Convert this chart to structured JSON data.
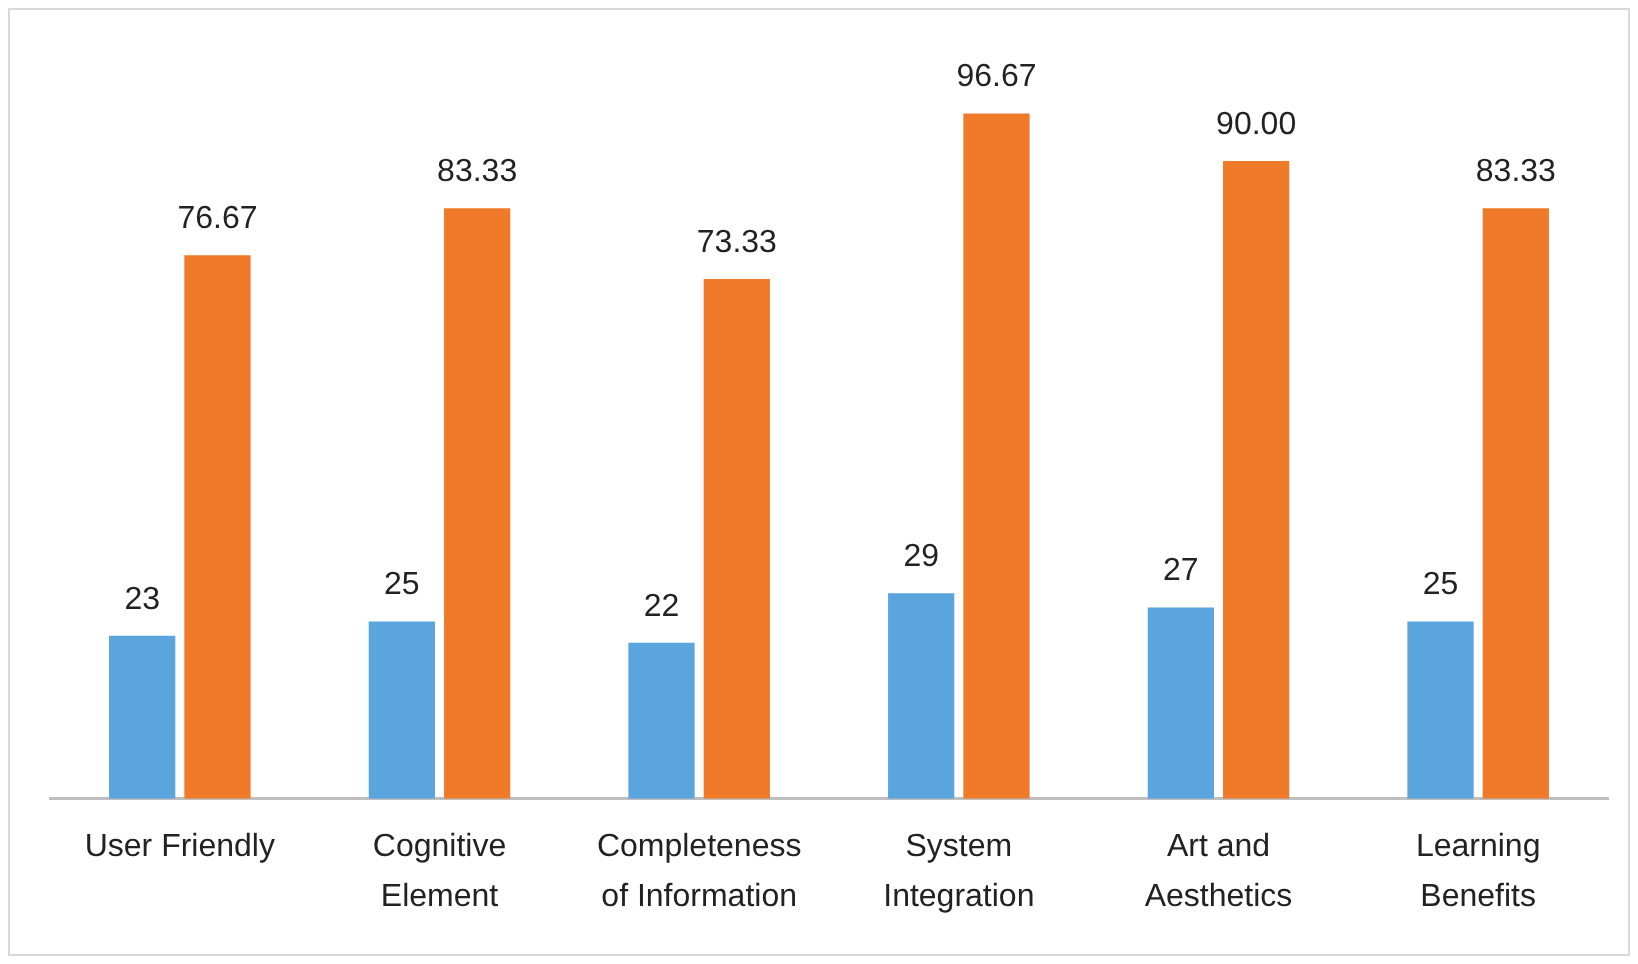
{
  "chart_data": {
    "type": "bar",
    "categories": [
      "User Friendly",
      "Cognitive Element",
      "Completeness of Information",
      "System Integration",
      "Art and Aesthetics",
      "Learning Benefits"
    ],
    "series": [
      {
        "color": "#5aa5de",
        "values": [
          23,
          25,
          22,
          29,
          27,
          25
        ],
        "value_labels": [
          "23",
          "25",
          "22",
          "29",
          "27",
          "25"
        ]
      },
      {
        "color": "#ef7b2a",
        "values": [
          76.67,
          83.33,
          73.33,
          96.67,
          90,
          83.33
        ],
        "value_labels": [
          "76.67",
          "83.33",
          "73.33",
          "96.67",
          "90.00",
          "83.33"
        ]
      }
    ],
    "grid": false,
    "legend": false
  }
}
